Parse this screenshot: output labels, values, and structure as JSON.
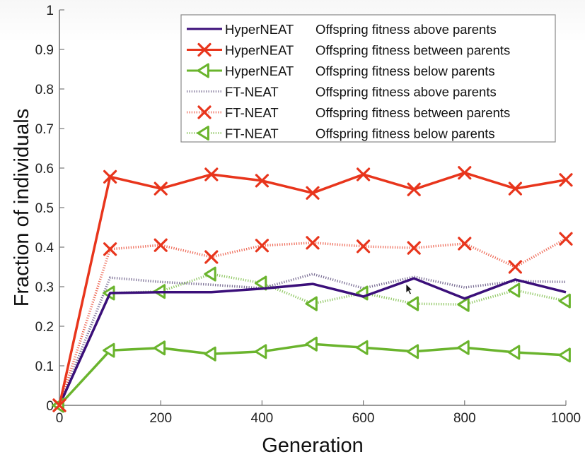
{
  "chart_data": {
    "type": "line",
    "title": "",
    "xlabel": "Generation",
    "ylabel": "Fraction of individuals",
    "xlim": [
      0,
      1000
    ],
    "ylim": [
      0,
      1
    ],
    "grid": false,
    "legend_position": "top-right",
    "x_ticks": [
      "0",
      "200",
      "400",
      "600",
      "800",
      "1000"
    ],
    "x_tick_values": [
      0,
      200,
      400,
      600,
      800,
      1000
    ],
    "y_ticks": [
      "0",
      "0.1",
      "0.2",
      "0.3",
      "0.4",
      "0.5",
      "0.6",
      "0.7",
      "0.8",
      "0.9",
      "1"
    ],
    "y_tick_values": [
      0,
      0.1,
      0.2,
      0.3,
      0.4,
      0.5,
      0.6,
      0.7,
      0.8,
      0.9,
      1
    ],
    "x": [
      0,
      100,
      200,
      300,
      400,
      500,
      600,
      700,
      800,
      900,
      1000
    ],
    "series": [
      {
        "name": "HyperNEAT",
        "description": "Offspring fitness above parents",
        "color": "#3b0f7a",
        "line_style": "solid",
        "marker": "none",
        "values": [
          0,
          0.284,
          0.286,
          0.286,
          0.295,
          0.307,
          0.275,
          0.321,
          0.27,
          0.318,
          0.286
        ]
      },
      {
        "name": "HyperNEAT",
        "description": "Offspring fitness between parents",
        "color": "#e8351c",
        "line_style": "solid",
        "marker": "x",
        "values": [
          0,
          0.578,
          0.548,
          0.584,
          0.568,
          0.537,
          0.584,
          0.546,
          0.588,
          0.548,
          0.57
        ]
      },
      {
        "name": "HyperNEAT",
        "description": "Offspring fitness below parents",
        "color": "#6ab42d",
        "line_style": "solid",
        "marker": "triangle-left",
        "values": [
          0,
          0.139,
          0.145,
          0.13,
          0.136,
          0.155,
          0.146,
          0.136,
          0.146,
          0.134,
          0.127
        ]
      },
      {
        "name": "FT-NEAT",
        "description": "Offspring fitness above parents",
        "color": "#4a3a6e",
        "line_style": "dotted",
        "marker": "none",
        "values": [
          0,
          0.323,
          0.312,
          0.305,
          0.296,
          0.332,
          0.296,
          0.325,
          0.298,
          0.314,
          0.312
        ]
      },
      {
        "name": "FT-NEAT",
        "description": "Offspring fitness between parents",
        "color": "#e8351c",
        "line_style": "dotted",
        "marker": "x",
        "values": [
          0,
          0.395,
          0.405,
          0.375,
          0.404,
          0.411,
          0.402,
          0.398,
          0.409,
          0.35,
          0.421
        ]
      },
      {
        "name": "FT-NEAT",
        "description": "Offspring fitness below parents",
        "color": "#6ab42d",
        "line_style": "dotted",
        "marker": "triangle-left",
        "values": [
          0,
          0.284,
          0.288,
          0.332,
          0.309,
          0.257,
          0.284,
          0.257,
          0.255,
          0.291,
          0.264
        ]
      }
    ]
  }
}
